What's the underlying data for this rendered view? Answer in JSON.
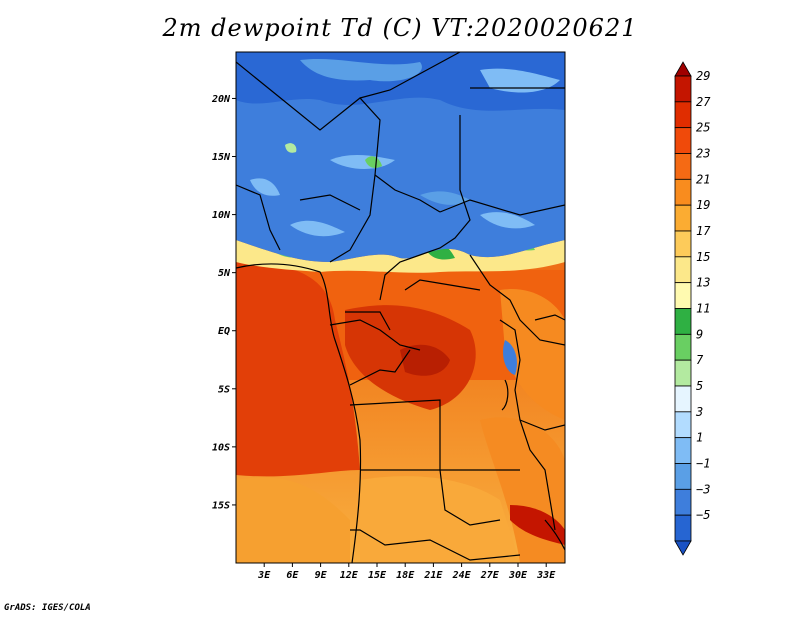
{
  "title": "2m dewpoint Td (C) VT:2020020621",
  "credit": "GrADS: IGES/COLA",
  "map": {
    "lon_range": [
      0,
      35
    ],
    "lat_range": [
      -20,
      24
    ],
    "lat_ticks": [
      {
        "value": 20,
        "label": "20N"
      },
      {
        "value": 15,
        "label": "15N"
      },
      {
        "value": 10,
        "label": "10N"
      },
      {
        "value": 5,
        "label": "5N"
      },
      {
        "value": 0,
        "label": "EQ"
      },
      {
        "value": -5,
        "label": "5S"
      },
      {
        "value": -10,
        "label": "10S"
      },
      {
        "value": -15,
        "label": "15S"
      }
    ],
    "lon_ticks": [
      {
        "value": 3,
        "label": "3E"
      },
      {
        "value": 6,
        "label": "6E"
      },
      {
        "value": 9,
        "label": "9E"
      },
      {
        "value": 12,
        "label": "12E"
      },
      {
        "value": 15,
        "label": "15E"
      },
      {
        "value": 18,
        "label": "18E"
      },
      {
        "value": 21,
        "label": "21E"
      },
      {
        "value": 24,
        "label": "24E"
      },
      {
        "value": 27,
        "label": "27E"
      },
      {
        "value": 30,
        "label": "30E"
      },
      {
        "value": 33,
        "label": "33E"
      }
    ]
  },
  "colorbar": {
    "labels": [
      "29",
      "27",
      "25",
      "23",
      "21",
      "19",
      "17",
      "15",
      "13",
      "11",
      "9",
      "7",
      "5",
      "3",
      "1",
      "−1",
      "−3",
      "−5"
    ],
    "colors": [
      "#a00000",
      "#c41500",
      "#e02d00",
      "#f04a0a",
      "#f56a14",
      "#f98c1e",
      "#fbac32",
      "#fdcb5a",
      "#fce88a",
      "#fffab0",
      "#2fb043",
      "#69cf62",
      "#b3eaa0",
      "#e6f5ff",
      "#b2dcff",
      "#7fbcf5",
      "#5a9fe6",
      "#3e7edc",
      "#2665d2",
      "#1a52c4"
    ]
  }
}
